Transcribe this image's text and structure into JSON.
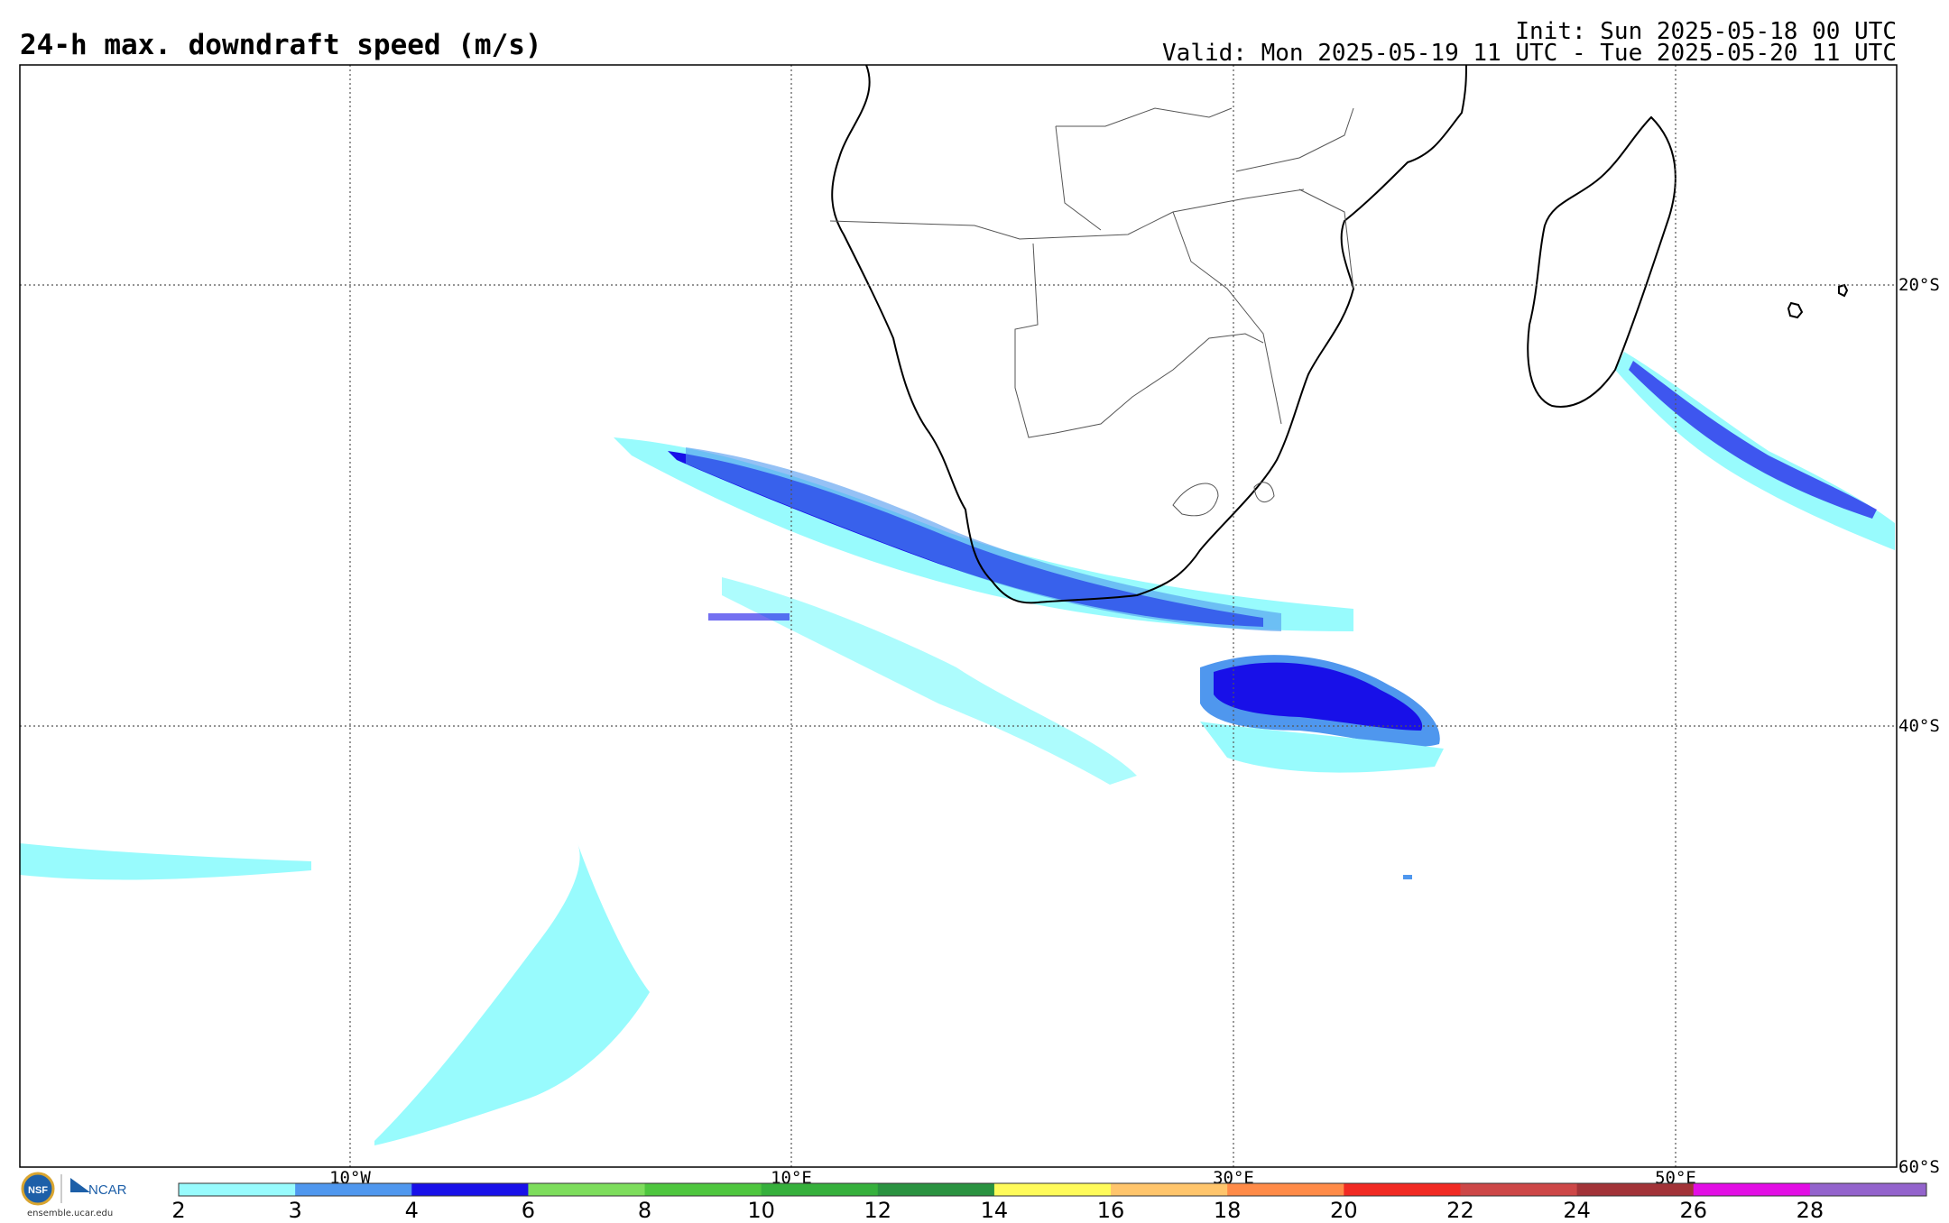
{
  "header": {
    "title": "24-h max. downdraft speed (m/s)",
    "init": "Init: Sun 2025-05-18 00 UTC",
    "valid": "Valid: Mon 2025-05-19 11 UTC - Tue 2025-05-20 11 UTC"
  },
  "map": {
    "lon_labels": [
      "10°W",
      "10°E",
      "30°E",
      "50°E"
    ],
    "lat_labels": [
      "20°S",
      "40°S",
      "60°S"
    ]
  },
  "colorbar": {
    "labels": [
      "2",
      "3",
      "4",
      "6",
      "8",
      "10",
      "12",
      "14",
      "16",
      "18",
      "20",
      "22",
      "24",
      "26",
      "28"
    ],
    "colors": [
      "#98fbfd",
      "#4f97ee",
      "#1810e8",
      "#7ddd5c",
      "#4ec63e",
      "#36b03c",
      "#2a9240",
      "#fffb5a",
      "#ffc56c",
      "#ff8b48",
      "#f12a23",
      "#cd4747",
      "#a23338",
      "#e20ee4",
      "#9363cc"
    ]
  },
  "logo": {
    "nsf": "NSF",
    "ncar": "NCAR",
    "url": "ensemble.ucar.edu"
  }
}
